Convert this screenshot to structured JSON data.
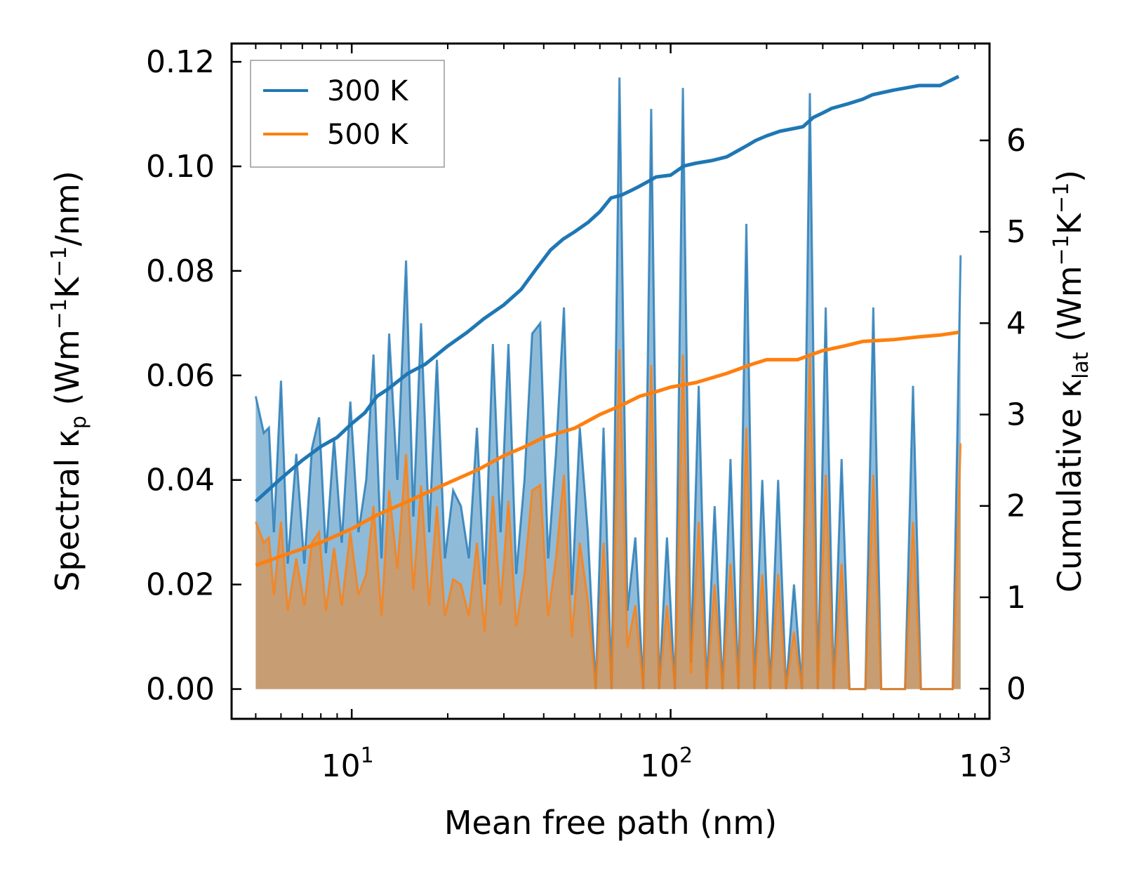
{
  "chart_data": {
    "type": "line",
    "xscale": "log",
    "xlabel": "Mean free path (nm)",
    "ylabel_parts": [
      "Spectral ",
      "κ",
      "p",
      " (Wm",
      "−1",
      "K",
      "−1",
      "/nm)"
    ],
    "y2label_parts": [
      "Cumulative ",
      "κ",
      "lat",
      " (Wm",
      "−1",
      "K",
      "−1",
      ")"
    ],
    "xlim": [
      4.2,
      1000
    ],
    "ylim": [
      -0.0057,
      0.1235
    ],
    "y2lim": [
      -0.33,
      7.06
    ],
    "x_ticks": [
      {
        "value": 10,
        "base": "10",
        "exp": "1"
      },
      {
        "value": 100,
        "base": "10",
        "exp": "2"
      },
      {
        "value": 1000,
        "base": "10",
        "exp": "3"
      }
    ],
    "y_ticks": [
      "0.00",
      "0.02",
      "0.04",
      "0.06",
      "0.08",
      "0.10",
      "0.12"
    ],
    "y2_ticks": [
      "0",
      "1",
      "2",
      "3",
      "4",
      "5",
      "6"
    ],
    "series": [
      {
        "name": "300 K",
        "color": "#1f77b4",
        "spectral_points": [
          [
            5,
            0.056
          ],
          [
            5.3,
            0.049
          ],
          [
            5.5,
            0.05
          ],
          [
            5.7,
            0.03
          ],
          [
            6.0,
            0.059
          ],
          [
            6.3,
            0.024
          ],
          [
            6.7,
            0.045
          ],
          [
            7.1,
            0.024
          ],
          [
            7.5,
            0.046
          ],
          [
            7.9,
            0.052
          ],
          [
            8.3,
            0.026
          ],
          [
            8.8,
            0.048
          ],
          [
            9.3,
            0.028
          ],
          [
            9.9,
            0.055
          ],
          [
            10.5,
            0.03
          ],
          [
            11.1,
            0.04
          ],
          [
            11.7,
            0.064
          ],
          [
            12.4,
            0.025
          ],
          [
            13.1,
            0.068
          ],
          [
            13.9,
            0.04
          ],
          [
            14.8,
            0.082
          ],
          [
            15.6,
            0.033
          ],
          [
            16.5,
            0.07
          ],
          [
            17.5,
            0.03
          ],
          [
            18.5,
            0.063
          ],
          [
            19.6,
            0.025
          ],
          [
            20.8,
            0.038
          ],
          [
            22,
            0.035
          ],
          [
            23.3,
            0.025
          ],
          [
            24.7,
            0.05
          ],
          [
            26.1,
            0.02
          ],
          [
            27.7,
            0.066
          ],
          [
            29.3,
            0.03
          ],
          [
            31,
            0.066
          ],
          [
            32.8,
            0.022
          ],
          [
            34.8,
            0.04
          ],
          [
            36.8,
            0.068
          ],
          [
            39,
            0.07
          ],
          [
            41.3,
            0.025
          ],
          [
            43.7,
            0.045
          ],
          [
            46.3,
            0.073
          ],
          [
            49,
            0.018
          ],
          [
            51.9,
            0.05
          ],
          [
            55,
            0.03
          ],
          [
            58.2,
            0.0
          ],
          [
            61.6,
            0.05
          ],
          [
            65.3,
            0.0
          ],
          [
            69.1,
            0.117
          ],
          [
            73.2,
            0.015
          ],
          [
            77.5,
            0.029
          ],
          [
            82.1,
            0.0
          ],
          [
            86.9,
            0.111
          ],
          [
            92,
            0.0
          ],
          [
            97.4,
            0.029
          ],
          [
            103.2,
            0.0
          ],
          [
            109.3,
            0.115
          ],
          [
            115.7,
            0.005
          ],
          [
            122.5,
            0.058
          ],
          [
            129.7,
            0.0
          ],
          [
            137.4,
            0.035
          ],
          [
            145.5,
            0.0
          ],
          [
            154.1,
            0.044
          ],
          [
            163.2,
            0.0
          ],
          [
            172.8,
            0.089
          ],
          [
            183,
            0.0
          ],
          [
            193.8,
            0.04
          ],
          [
            205.2,
            0.0
          ],
          [
            217.3,
            0.04
          ],
          [
            230.1,
            0.0
          ],
          [
            243.7,
            0.02
          ],
          [
            258,
            0.0
          ],
          [
            273.3,
            0.114
          ],
          [
            289.4,
            0.0
          ],
          [
            306.4,
            0.073
          ],
          [
            324.5,
            0.0
          ],
          [
            343.6,
            0.044
          ],
          [
            363.9,
            0.0
          ],
          [
            385.3,
            0.0
          ],
          [
            408.1,
            0.0
          ],
          [
            432.1,
            0.073
          ],
          [
            457.6,
            0.0
          ],
          [
            484.6,
            0.0
          ],
          [
            513.2,
            0.0
          ],
          [
            543.4,
            0.0
          ],
          [
            575.5,
            0.058
          ],
          [
            609.4,
            0.0
          ],
          [
            645.4,
            0.0
          ],
          [
            683.4,
            0.0
          ],
          [
            723.8,
            0.0
          ],
          [
            766.4,
            0.0
          ],
          [
            811.6,
            0.083
          ]
        ],
        "cumulative_points": [
          [
            5,
            2.05
          ],
          [
            6,
            2.3
          ],
          [
            7,
            2.5
          ],
          [
            8,
            2.65
          ],
          [
            9,
            2.75
          ],
          [
            10,
            2.9
          ],
          [
            11,
            3.02
          ],
          [
            12,
            3.2
          ],
          [
            13,
            3.28
          ],
          [
            15,
            3.45
          ],
          [
            17,
            3.55
          ],
          [
            20,
            3.75
          ],
          [
            23,
            3.9
          ],
          [
            26,
            4.05
          ],
          [
            30,
            4.2
          ],
          [
            34,
            4.37
          ],
          [
            38,
            4.6
          ],
          [
            42,
            4.8
          ],
          [
            46,
            4.92
          ],
          [
            50,
            5.0
          ],
          [
            55,
            5.1
          ],
          [
            60,
            5.22
          ],
          [
            65,
            5.37
          ],
          [
            70,
            5.4
          ],
          [
            75,
            5.45
          ],
          [
            80,
            5.5
          ],
          [
            85,
            5.55
          ],
          [
            90,
            5.6
          ],
          [
            100,
            5.62
          ],
          [
            110,
            5.72
          ],
          [
            120,
            5.75
          ],
          [
            135,
            5.78
          ],
          [
            150,
            5.82
          ],
          [
            165,
            5.9
          ],
          [
            175,
            5.95
          ],
          [
            185,
            6.0
          ],
          [
            200,
            6.05
          ],
          [
            220,
            6.1
          ],
          [
            260,
            6.15
          ],
          [
            280,
            6.25
          ],
          [
            300,
            6.3
          ],
          [
            320,
            6.35
          ],
          [
            360,
            6.4
          ],
          [
            400,
            6.45
          ],
          [
            430,
            6.5
          ],
          [
            500,
            6.55
          ],
          [
            600,
            6.6
          ],
          [
            700,
            6.6
          ],
          [
            800,
            6.7
          ]
        ]
      },
      {
        "name": "500 K",
        "color": "#ff7f0e",
        "spectral_points": [
          [
            5,
            0.032
          ],
          [
            5.3,
            0.028
          ],
          [
            5.5,
            0.029
          ],
          [
            5.7,
            0.018
          ],
          [
            6.0,
            0.032
          ],
          [
            6.3,
            0.015
          ],
          [
            6.7,
            0.025
          ],
          [
            7.1,
            0.016
          ],
          [
            7.5,
            0.028
          ],
          [
            7.9,
            0.03
          ],
          [
            8.3,
            0.015
          ],
          [
            8.8,
            0.027
          ],
          [
            9.3,
            0.016
          ],
          [
            9.9,
            0.03
          ],
          [
            10.5,
            0.018
          ],
          [
            11.1,
            0.022
          ],
          [
            11.7,
            0.035
          ],
          [
            12.4,
            0.014
          ],
          [
            13.1,
            0.038
          ],
          [
            13.9,
            0.023
          ],
          [
            14.8,
            0.045
          ],
          [
            15.6,
            0.019
          ],
          [
            16.5,
            0.039
          ],
          [
            17.5,
            0.016
          ],
          [
            18.5,
            0.035
          ],
          [
            19.6,
            0.014
          ],
          [
            20.8,
            0.021
          ],
          [
            22,
            0.02
          ],
          [
            23.3,
            0.014
          ],
          [
            24.7,
            0.028
          ],
          [
            26.1,
            0.011
          ],
          [
            27.7,
            0.037
          ],
          [
            29.3,
            0.016
          ],
          [
            31,
            0.036
          ],
          [
            32.8,
            0.012
          ],
          [
            34.8,
            0.022
          ],
          [
            36.8,
            0.038
          ],
          [
            39,
            0.039
          ],
          [
            41.3,
            0.014
          ],
          [
            43.7,
            0.025
          ],
          [
            46.3,
            0.041
          ],
          [
            49,
            0.01
          ],
          [
            51.9,
            0.028
          ],
          [
            55,
            0.017
          ],
          [
            58.2,
            0.0
          ],
          [
            61.6,
            0.028
          ],
          [
            65.3,
            0.0
          ],
          [
            69.1,
            0.065
          ],
          [
            73.2,
            0.008
          ],
          [
            77.5,
            0.016
          ],
          [
            82.1,
            0.0
          ],
          [
            86.9,
            0.062
          ],
          [
            92,
            0.0
          ],
          [
            97.4,
            0.016
          ],
          [
            103.2,
            0.0
          ],
          [
            109.3,
            0.064
          ],
          [
            115.7,
            0.003
          ],
          [
            122.5,
            0.032
          ],
          [
            129.7,
            0.0
          ],
          [
            137.4,
            0.02
          ],
          [
            145.5,
            0.0
          ],
          [
            154.1,
            0.024
          ],
          [
            163.2,
            0.0
          ],
          [
            172.8,
            0.05
          ],
          [
            183,
            0.0
          ],
          [
            193.8,
            0.022
          ],
          [
            205.2,
            0.0
          ],
          [
            217.3,
            0.022
          ],
          [
            230.1,
            0.0
          ],
          [
            243.7,
            0.011
          ],
          [
            258,
            0.0
          ],
          [
            273.3,
            0.064
          ],
          [
            289.4,
            0.0
          ],
          [
            306.4,
            0.041
          ],
          [
            324.5,
            0.0
          ],
          [
            343.6,
            0.024
          ],
          [
            363.9,
            0.0
          ],
          [
            385.3,
            0.0
          ],
          [
            408.1,
            0.0
          ],
          [
            432.1,
            0.041
          ],
          [
            457.6,
            0.0
          ],
          [
            484.6,
            0.0
          ],
          [
            513.2,
            0.0
          ],
          [
            543.4,
            0.0
          ],
          [
            575.5,
            0.032
          ],
          [
            609.4,
            0.0
          ],
          [
            645.4,
            0.0
          ],
          [
            683.4,
            0.0
          ],
          [
            723.8,
            0.0
          ],
          [
            766.4,
            0.0
          ],
          [
            811.6,
            0.047
          ]
        ],
        "cumulative_points": [
          [
            5,
            1.35
          ],
          [
            6,
            1.45
          ],
          [
            8,
            1.6
          ],
          [
            10,
            1.75
          ],
          [
            12,
            1.9
          ],
          [
            15,
            2.05
          ],
          [
            20,
            2.25
          ],
          [
            25,
            2.4
          ],
          [
            30,
            2.55
          ],
          [
            35,
            2.65
          ],
          [
            40,
            2.75
          ],
          [
            50,
            2.85
          ],
          [
            60,
            3.0
          ],
          [
            70,
            3.1
          ],
          [
            80,
            3.2
          ],
          [
            90,
            3.25
          ],
          [
            100,
            3.3
          ],
          [
            120,
            3.35
          ],
          [
            150,
            3.45
          ],
          [
            180,
            3.55
          ],
          [
            200,
            3.6
          ],
          [
            250,
            3.6
          ],
          [
            300,
            3.7
          ],
          [
            350,
            3.75
          ],
          [
            400,
            3.8
          ],
          [
            500,
            3.82
          ],
          [
            600,
            3.85
          ],
          [
            700,
            3.87
          ],
          [
            800,
            3.9
          ]
        ]
      }
    ],
    "legend": {
      "position": "top-left",
      "entries": [
        "300 K",
        "500 K"
      ]
    }
  }
}
